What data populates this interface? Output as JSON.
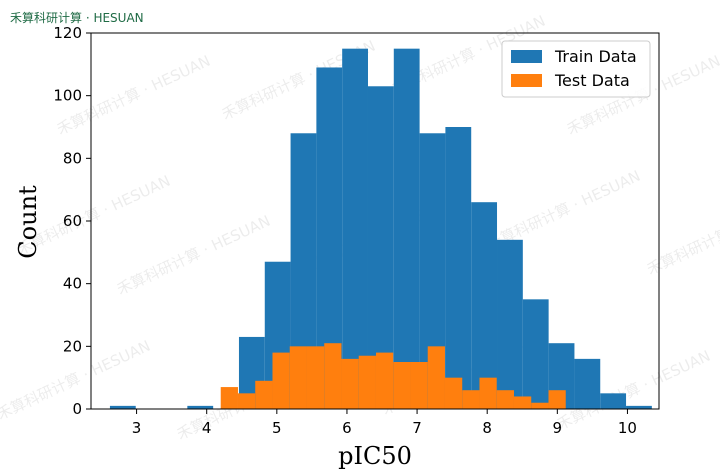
{
  "brand": {
    "text": "禾算科研计算 · HESUAN",
    "color": "#1f6b45"
  },
  "watermark": {
    "text": "禾算科研计算 · HESUAN"
  },
  "chart_data": {
    "type": "bar",
    "subtype": "histogram",
    "xlabel": "pIC50",
    "ylabel": "Count",
    "xlim": [
      2.35,
      10.45
    ],
    "ylim": [
      0,
      120
    ],
    "xticks": [
      3,
      4,
      5,
      6,
      7,
      8,
      9,
      10
    ],
    "yticks": [
      0,
      20,
      40,
      60,
      80,
      100,
      120
    ],
    "legend": {
      "placement": "top-right"
    },
    "series": [
      {
        "name": "Train Data",
        "color": "#1f77b4",
        "bin_start": 2.62,
        "bin_width": 0.368,
        "values": [
          1,
          0,
          0,
          1,
          0,
          23,
          47,
          88,
          109,
          115,
          103,
          115,
          88,
          90,
          66,
          54,
          35,
          21,
          16,
          5,
          1
        ]
      },
      {
        "name": "Test Data",
        "color": "#ff7f0e",
        "bin_start": 4.2,
        "bin_width": 0.246,
        "values": [
          7,
          5,
          9,
          18,
          20,
          20,
          21,
          16,
          17,
          18,
          15,
          15,
          20,
          10,
          6,
          10,
          6,
          4,
          2,
          6
        ]
      }
    ]
  }
}
